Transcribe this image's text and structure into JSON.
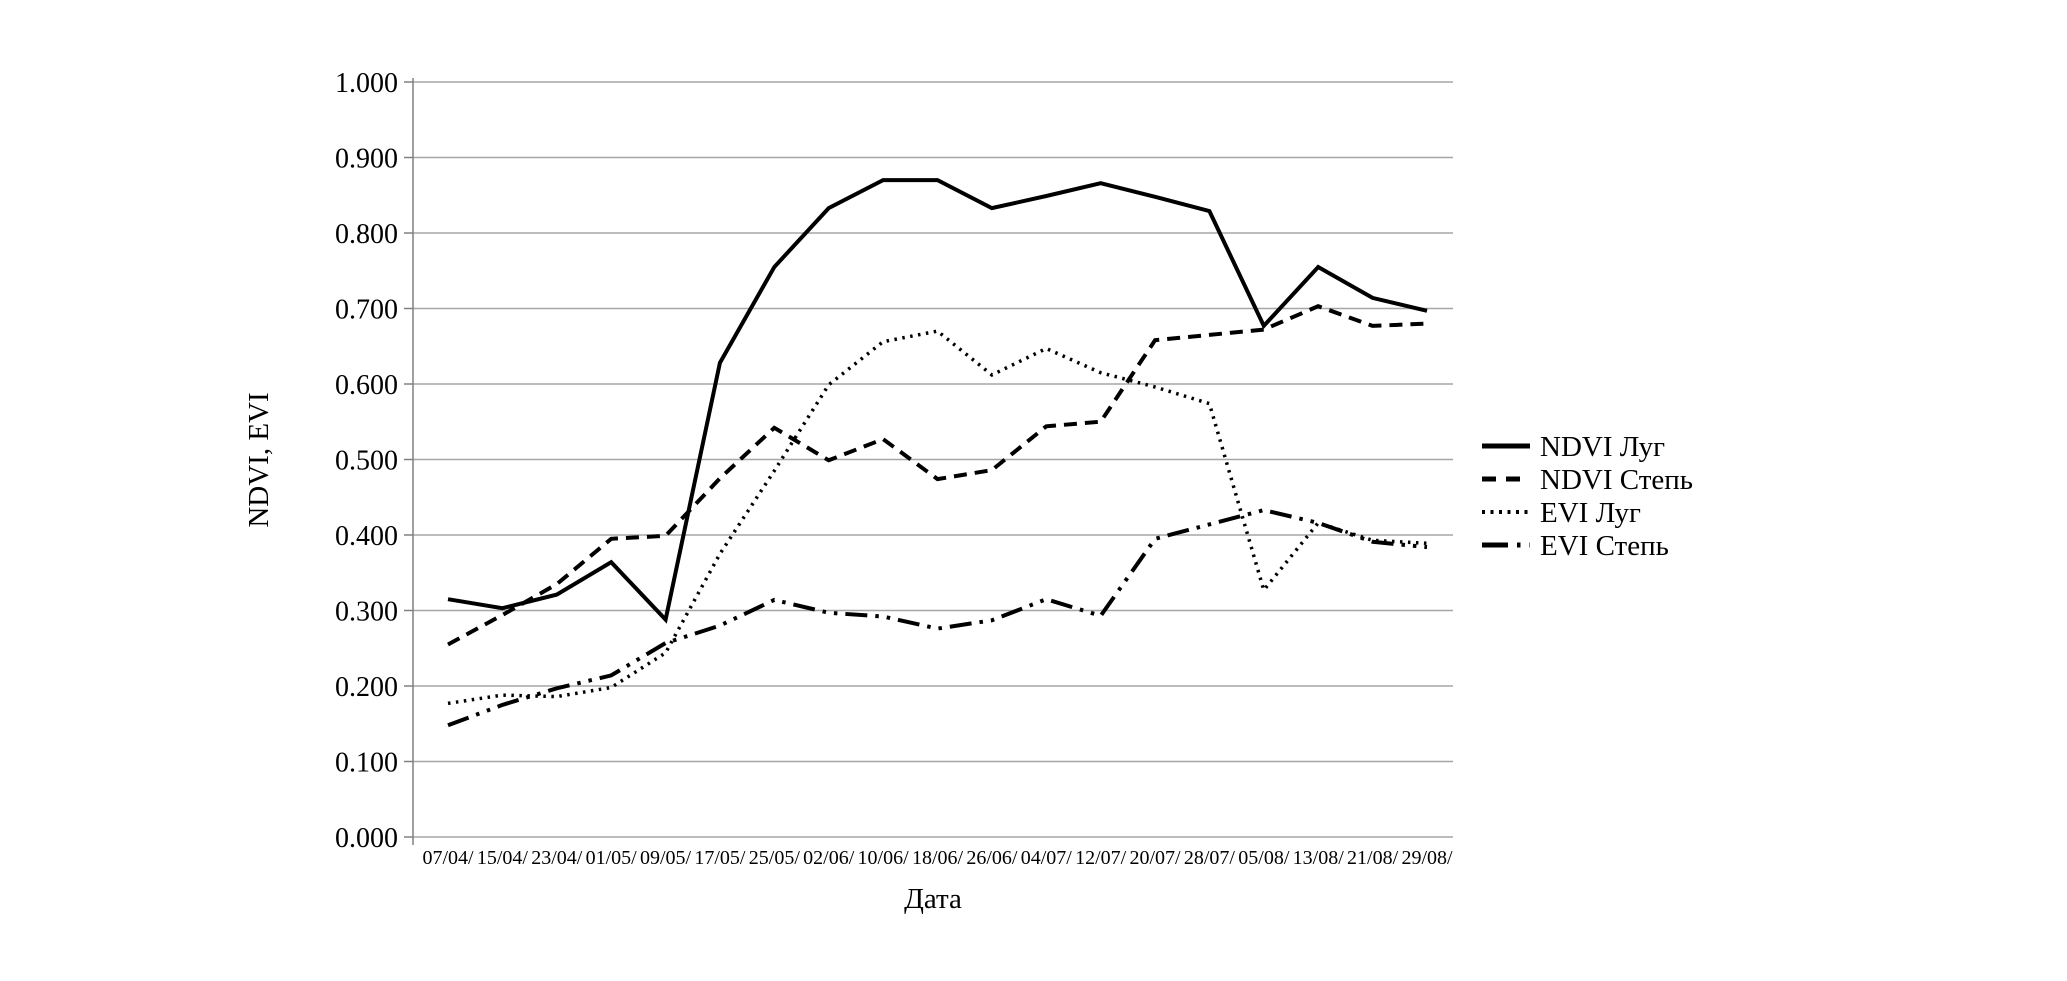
{
  "chart_data": {
    "type": "line",
    "title": "",
    "xlabel": "Дата",
    "ylabel": "NDVI, EVI",
    "ylim": [
      0,
      1
    ],
    "grid": true,
    "legend_position": "right",
    "background_color": "#ffffff",
    "line_color": "#000000",
    "gridline_color": "#a6a6a6",
    "yticks": [
      "0.000",
      "0.100",
      "0.200",
      "0.300",
      "0.400",
      "0.500",
      "0.600",
      "0.700",
      "0.800",
      "0.900",
      "1.000"
    ],
    "categories": [
      "07/04/",
      "15/04/",
      "23/04/",
      "01/05/",
      "09/05/",
      "17/05/",
      "25/05/",
      "02/06/",
      "10/06/",
      "18/06/",
      "26/06/",
      "04/07/",
      "12/07/",
      "20/07/",
      "28/07/",
      "05/08/",
      "13/08/",
      "21/08/",
      "29/08/"
    ],
    "series": [
      {
        "name": "NDVI Луг",
        "style": "solid",
        "values": [
          0.315,
          0.303,
          0.321,
          0.364,
          0.288,
          0.628,
          0.755,
          0.833,
          0.87,
          0.87,
          0.833,
          0.849,
          0.866,
          0.848,
          0.829,
          0.677,
          0.755,
          0.714,
          0.697
        ]
      },
      {
        "name": "NDVI Степь",
        "style": "dashed",
        "values": [
          0.255,
          0.294,
          0.335,
          0.395,
          0.399,
          0.475,
          0.542,
          0.499,
          0.527,
          0.474,
          0.486,
          0.544,
          0.55,
          0.658,
          0.665,
          0.672,
          0.703,
          0.677,
          0.68
        ]
      },
      {
        "name": "EVI Луг",
        "style": "dotted",
        "values": [
          0.177,
          0.188,
          0.186,
          0.198,
          0.244,
          0.375,
          0.485,
          0.599,
          0.656,
          0.67,
          0.612,
          0.647,
          0.615,
          0.596,
          0.574,
          0.327,
          0.416,
          0.393,
          0.389
        ]
      },
      {
        "name": "EVI Степь",
        "style": "dashdotdot",
        "values": [
          0.148,
          0.175,
          0.197,
          0.214,
          0.257,
          0.28,
          0.314,
          0.297,
          0.292,
          0.276,
          0.287,
          0.315,
          0.293,
          0.395,
          0.414,
          0.433,
          0.416,
          0.391,
          0.384
        ]
      }
    ]
  }
}
